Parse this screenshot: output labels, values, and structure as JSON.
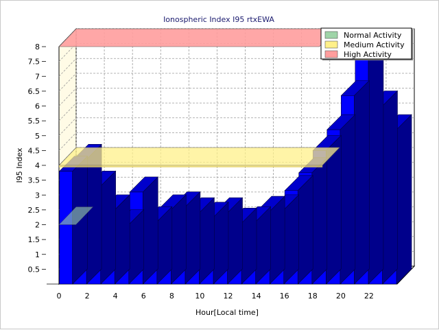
{
  "chart_data": {
    "type": "bar",
    "title": "Ionospheric Index I95 rtxEWA",
    "xlabel": "Hour[Local time]",
    "ylabel": "I95 Index",
    "ylim": [
      0,
      8
    ],
    "yticks": [
      "0.5",
      "1",
      "1.5",
      "2",
      "2.5",
      "3",
      "3.5",
      "4",
      "4.5",
      "5",
      "5.5",
      "6",
      "6.5",
      "7",
      "7.5",
      "8"
    ],
    "xticks": [
      "0",
      "2",
      "4",
      "6",
      "8",
      "10",
      "12",
      "14",
      "16",
      "18",
      "20",
      "22"
    ],
    "hours": [
      0,
      1,
      2,
      3,
      4,
      5,
      6,
      7,
      8,
      9,
      10,
      11,
      12,
      13,
      14,
      15,
      16,
      17,
      18,
      19,
      20,
      21,
      22,
      23
    ],
    "values": [
      3.8,
      4.2,
      3.3,
      2.5,
      2.0,
      3.1,
      2.1,
      2.5,
      2.6,
      2.4,
      2.25,
      2.4,
      2.05,
      2.1,
      2.45,
      2.5,
      3.15,
      3.75,
      4.5,
      5.2,
      6.35,
      7.7,
      6.0,
      5.2
    ],
    "bar_color": "#0000ff",
    "grid": true,
    "bands": [
      {
        "name": "Normal Activity",
        "from": 0,
        "to": 2,
        "color": "#9fd4a8"
      },
      {
        "name": "Medium Activity",
        "from": 2,
        "to": 4,
        "color": "#fff08a"
      },
      {
        "name": "High Activity",
        "from": 4,
        "to": 8,
        "color": "#ff9d9d"
      }
    ],
    "legend_position": "top-right"
  }
}
